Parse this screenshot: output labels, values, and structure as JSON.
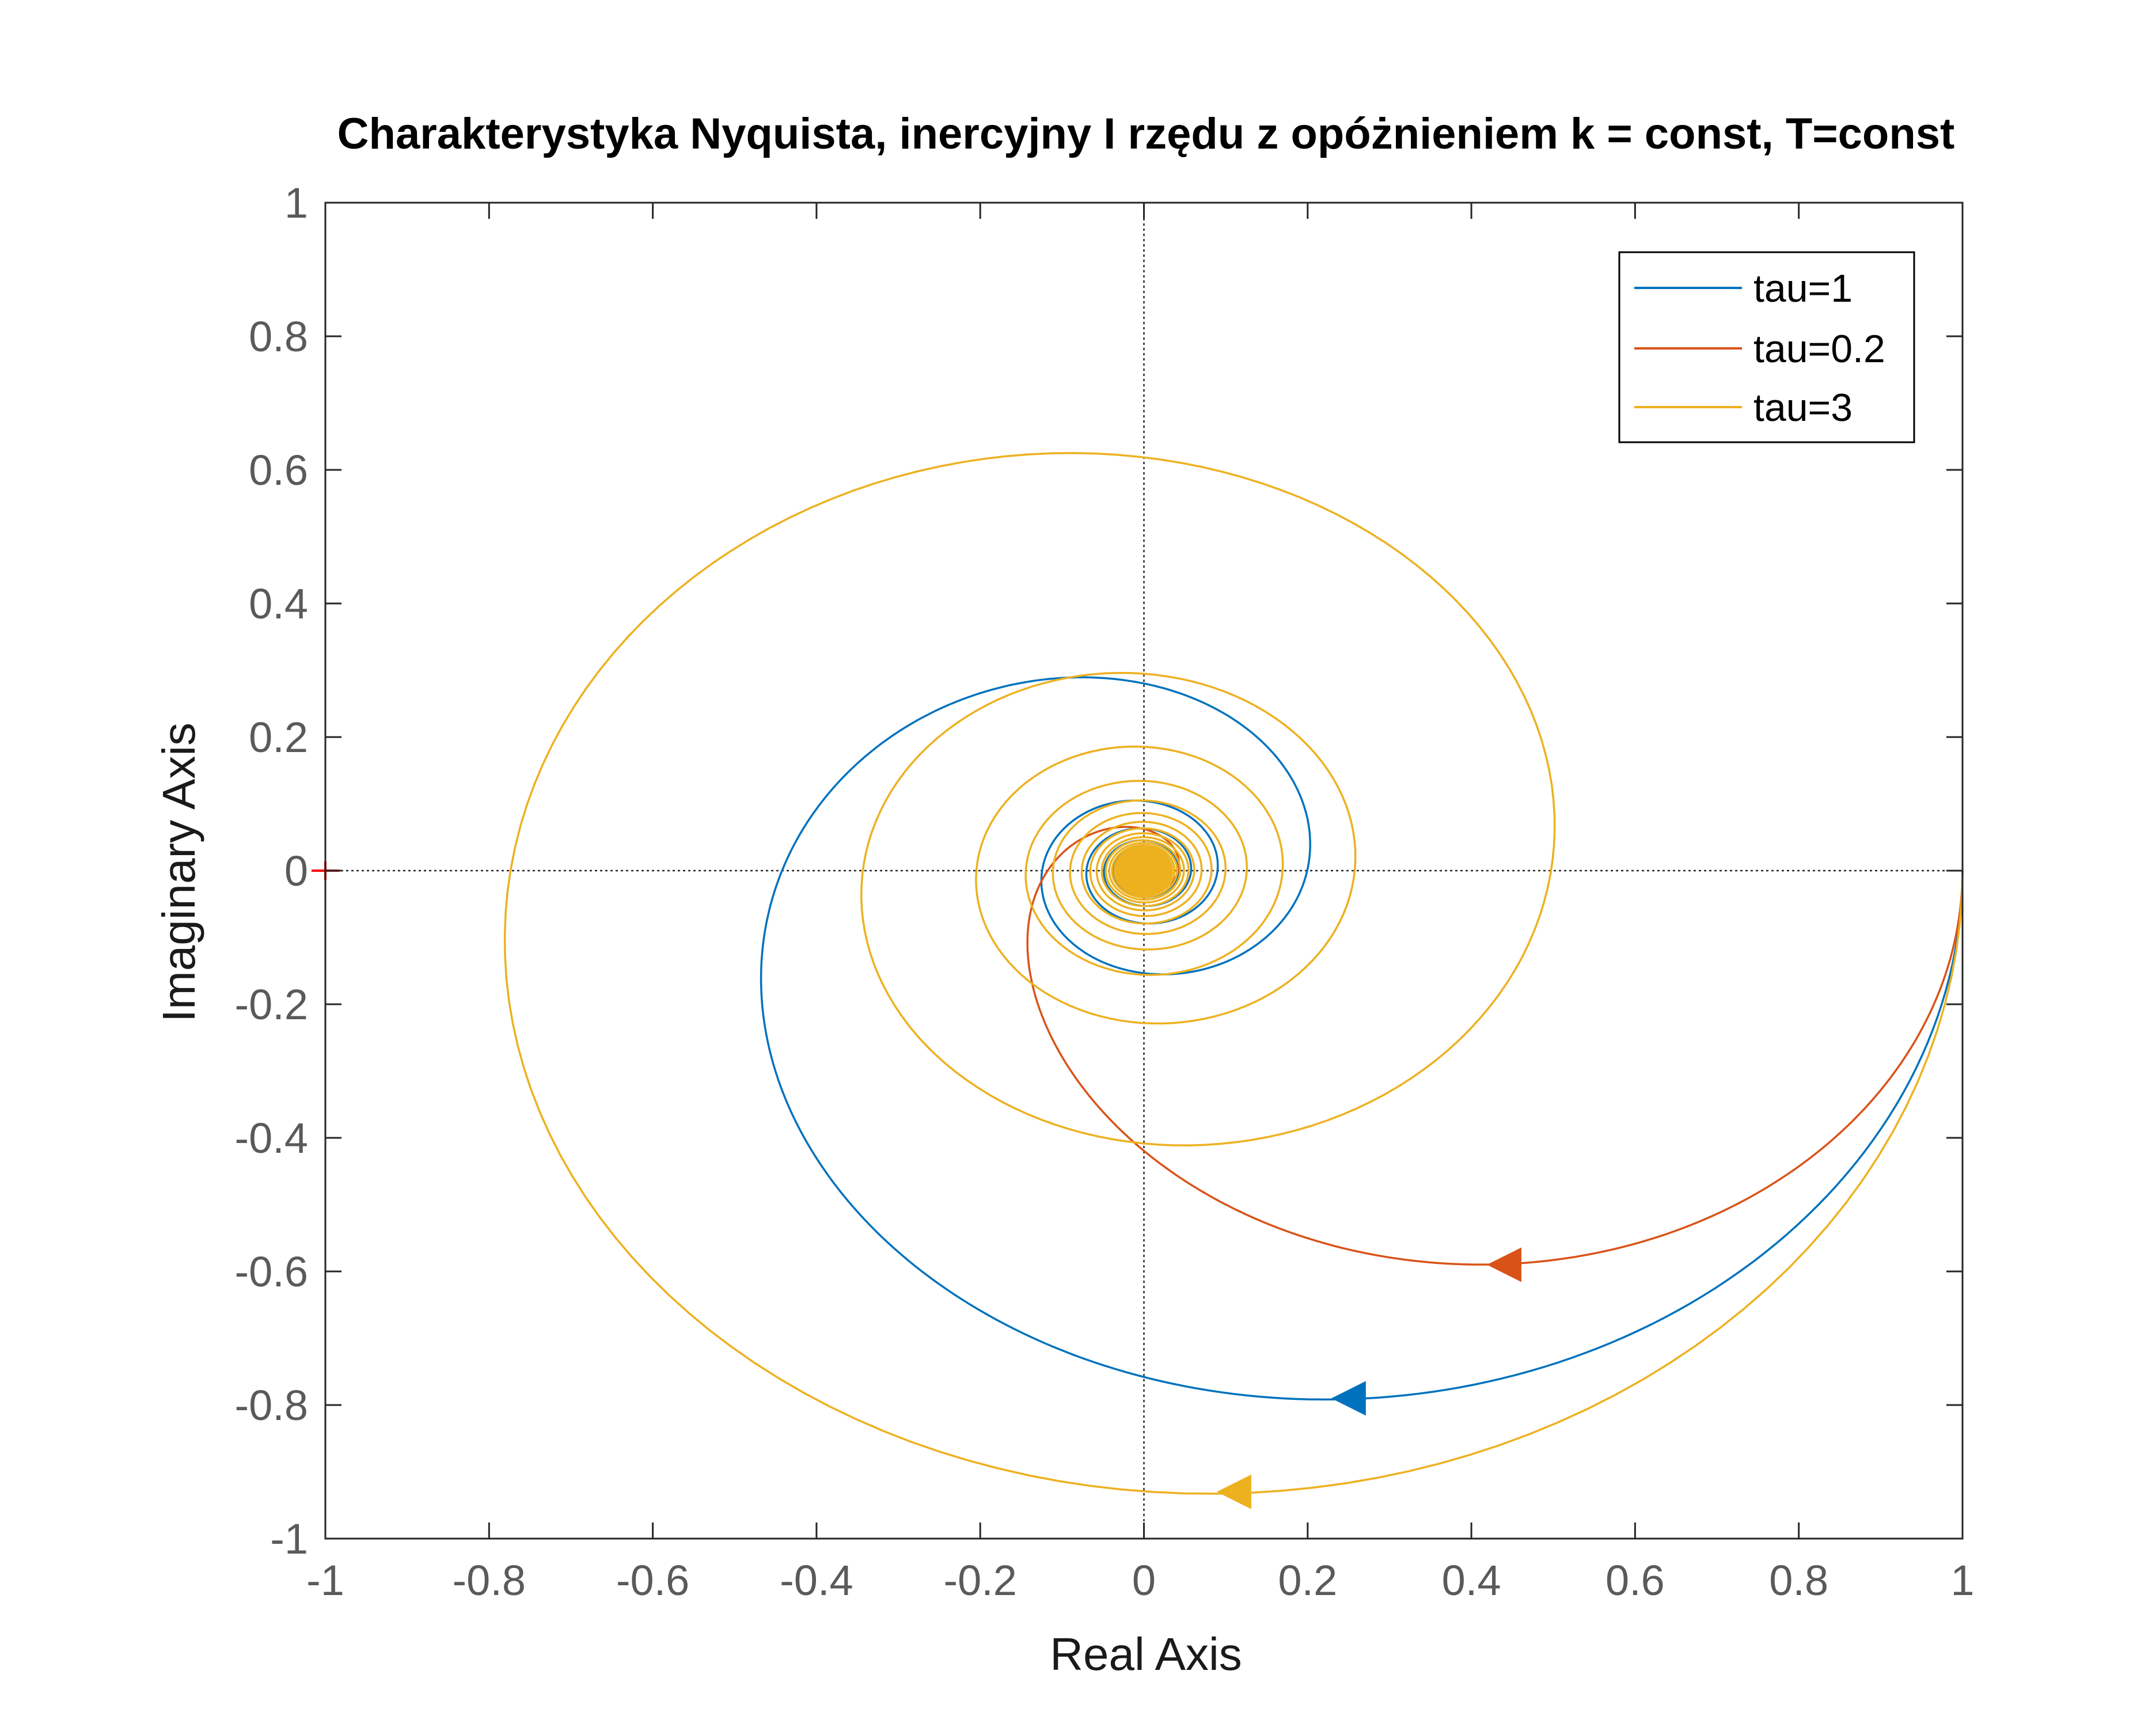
{
  "chart_data": {
    "type": "line",
    "title": "Charakterystyka Nyquista, inercyjny I rzędu z opóżnieniem k = const, T=const",
    "xlabel": "Real Axis",
    "ylabel": "Imaginary Axis",
    "xlim": [
      -1,
      1
    ],
    "ylim": [
      -1,
      1
    ],
    "xticks": [
      -1,
      -0.8,
      -0.6,
      -0.4,
      -0.2,
      0,
      0.2,
      0.4,
      0.6,
      0.8,
      1
    ],
    "yticks": [
      -1,
      -0.8,
      -0.6,
      -0.4,
      -0.2,
      0,
      0.2,
      0.4,
      0.6,
      0.8,
      1
    ],
    "xtick_labels": [
      "-1",
      "-0.8",
      "-0.6",
      "-0.4",
      "-0.2",
      "0",
      "0.2",
      "0.4",
      "0.6",
      "0.8",
      "1"
    ],
    "ytick_labels": [
      "-1",
      "-0.8",
      "-0.6",
      "-0.4",
      "-0.2",
      "0",
      "0.2",
      "0.4",
      "0.6",
      "0.8",
      "1"
    ],
    "grid": false,
    "legend_position": "top-right",
    "critical_point": {
      "x": -1,
      "y": 0,
      "color": "#ff0000"
    },
    "series": [
      {
        "name": "tau=1",
        "tau": 1,
        "color": "#0072bd",
        "arrow": {
          "x": 0.25,
          "y": -0.79
        }
      },
      {
        "name": "tau=0.2",
        "tau": 0.2,
        "color": "#d95319",
        "arrow": {
          "x": 0.44,
          "y": -0.59
        }
      },
      {
        "name": "tau=3",
        "tau": 3,
        "color": "#edb120",
        "arrow": {
          "x": 0.11,
          "y": -0.93
        }
      }
    ]
  }
}
